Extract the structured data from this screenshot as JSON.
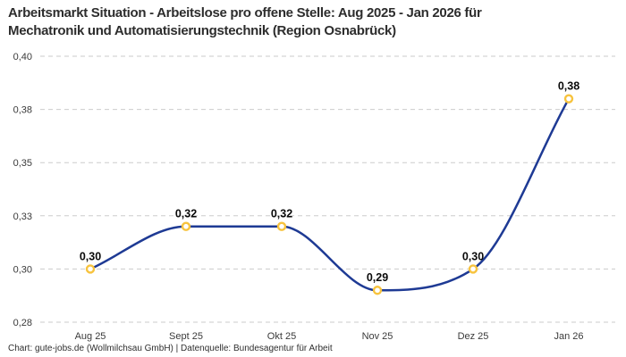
{
  "title": {
    "line1": "Arbeitsmarkt Situation - Arbeitslose pro offene Stelle: Aug 2025 - Jan 2026 für",
    "line2": "Mechatronik und Automatisierungstechnik (Region Osnabrück)"
  },
  "footer": "Chart: gute-jobs.de (Wollmilchsau GmbH) | Datenquelle: Bundesagentur für Arbeit",
  "chart_data": {
    "type": "line",
    "title": "Arbeitsmarkt Situation - Arbeitslose pro offene Stelle: Aug 2025 - Jan 2026 für Mechatronik und Automatisierungstechnik (Region Osnabrück)",
    "categories": [
      "Aug 25",
      "Sept 25",
      "Okt 25",
      "Nov 25",
      "Dez 25",
      "Jan 26"
    ],
    "values": [
      0.3,
      0.32,
      0.32,
      0.29,
      0.3,
      0.38
    ],
    "point_labels": [
      "0,30",
      "0,32",
      "0,32",
      "0,29",
      "0,30",
      "0,38"
    ],
    "y_ticks": [
      {
        "value": 0.275,
        "label": "0,28"
      },
      {
        "value": 0.3,
        "label": "0,30"
      },
      {
        "value": 0.325,
        "label": "0,33"
      },
      {
        "value": 0.35,
        "label": "0,35"
      },
      {
        "value": 0.375,
        "label": "0,38"
      },
      {
        "value": 0.4,
        "label": "0,40"
      }
    ],
    "ylim": [
      0.275,
      0.4
    ],
    "xlabel": "",
    "ylabel": "",
    "grid": "horizontal-dashed",
    "legend_position": "none",
    "curve": "monotone",
    "colors": {
      "line": "#1e3a94",
      "marker_stroke": "#f7c33e",
      "marker_fill": "#ffffff",
      "grid": "#cbcbcb",
      "point_label": "#0a0a0a",
      "axis_text": "#3a3a3a",
      "title": "#2d2d2d"
    }
  }
}
